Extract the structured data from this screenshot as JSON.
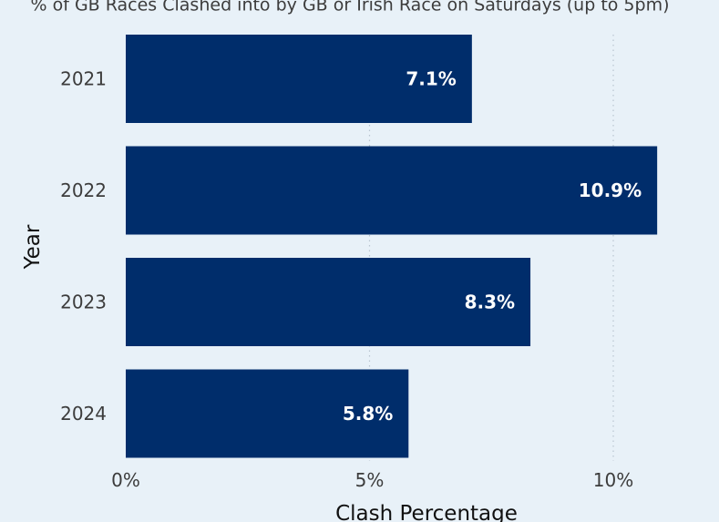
{
  "chart_data": {
    "type": "bar",
    "orientation": "horizontal",
    "title": "% of GB Races Clashed into by GB or Irish Race on Saturdays (up to 5pm)",
    "xlabel": "Clash Percentage",
    "ylabel": "Year",
    "categories": [
      "2021",
      "2022",
      "2023",
      "2024"
    ],
    "values": [
      7.1,
      10.9,
      8.3,
      5.8
    ],
    "value_labels": [
      "7.1%",
      "10.9%",
      "8.3%",
      "5.8%"
    ],
    "xlim": [
      0,
      11
    ],
    "x_ticks": [
      0,
      5,
      10
    ],
    "x_tick_labels": [
      "0%",
      "5%",
      "10%"
    ],
    "grid": "vertical dotted",
    "legend": "none"
  },
  "colors": {
    "background": "#e8f1f8",
    "bar": "#002d6b",
    "bar_label": "#ffffff",
    "text": "#3c3c3c",
    "axis_title": "#111111",
    "grid": "#b8c4cf"
  }
}
